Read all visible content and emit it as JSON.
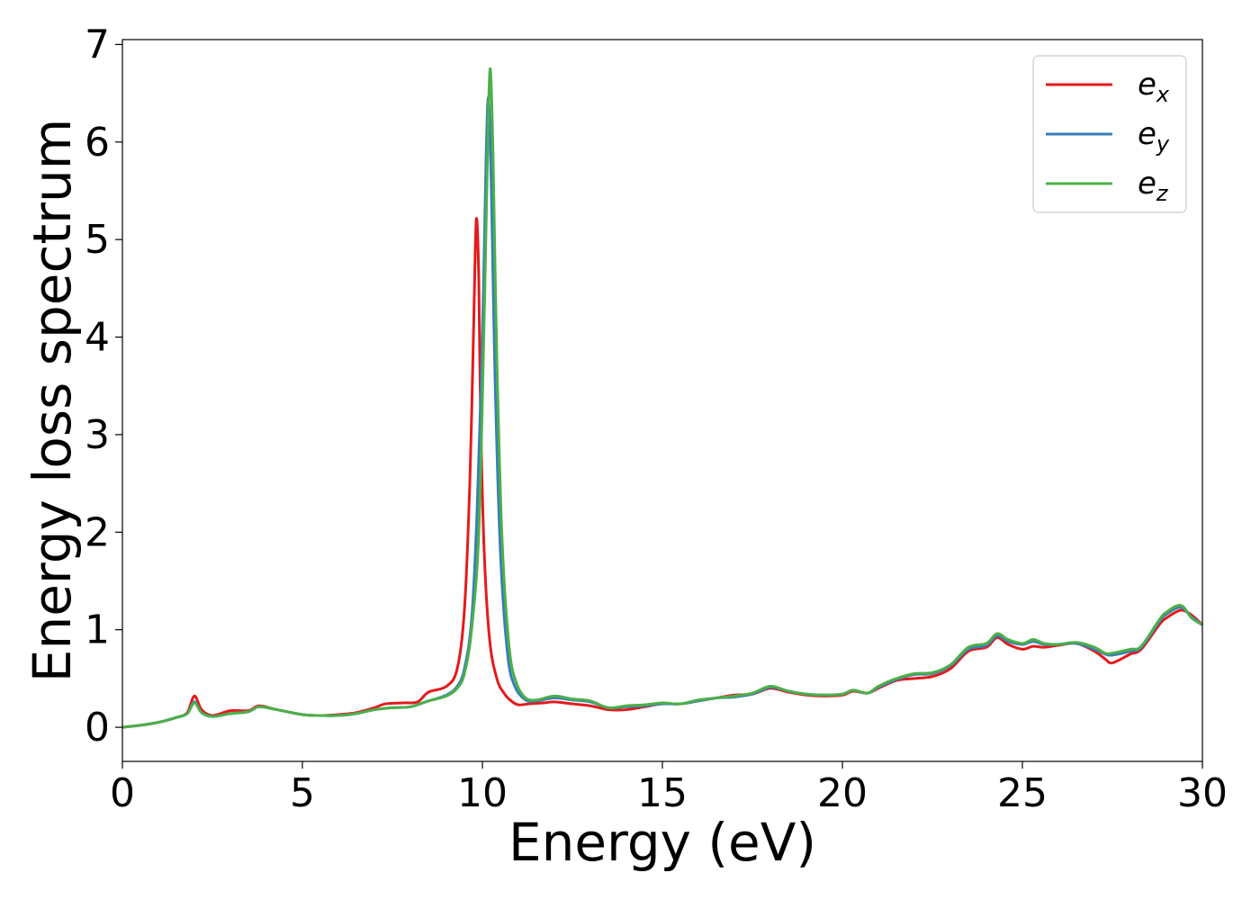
{
  "chart_data": {
    "type": "line",
    "xlabel": "Energy (eV)",
    "ylabel": "Energy loss spectrum",
    "xlim": [
      0,
      30
    ],
    "ylim": [
      -0.35,
      7.05
    ],
    "xticks": [
      0,
      5,
      10,
      15,
      20,
      25,
      30
    ],
    "yticks": [
      0,
      1,
      2,
      3,
      4,
      5,
      6,
      7
    ],
    "grid": false,
    "legend_position": "top-right",
    "series": [
      {
        "name": "e",
        "subscript": "x",
        "color": "#e41a1c",
        "points": [
          [
            0,
            0.0
          ],
          [
            0.5,
            0.02
          ],
          [
            1.0,
            0.05
          ],
          [
            1.5,
            0.1
          ],
          [
            1.8,
            0.15
          ],
          [
            2.0,
            0.32
          ],
          [
            2.2,
            0.18
          ],
          [
            2.5,
            0.12
          ],
          [
            3.0,
            0.17
          ],
          [
            3.5,
            0.17
          ],
          [
            3.8,
            0.22
          ],
          [
            4.3,
            0.18
          ],
          [
            5.0,
            0.13
          ],
          [
            5.5,
            0.12
          ],
          [
            6.0,
            0.13
          ],
          [
            6.5,
            0.15
          ],
          [
            7.0,
            0.2
          ],
          [
            7.3,
            0.24
          ],
          [
            7.8,
            0.25
          ],
          [
            8.2,
            0.26
          ],
          [
            8.5,
            0.36
          ],
          [
            9.0,
            0.42
          ],
          [
            9.3,
            0.6
          ],
          [
            9.5,
            1.2
          ],
          [
            9.65,
            2.5
          ],
          [
            9.75,
            4.0
          ],
          [
            9.83,
            5.2
          ],
          [
            9.9,
            4.6
          ],
          [
            9.95,
            3.2
          ],
          [
            10.05,
            1.8
          ],
          [
            10.2,
            0.9
          ],
          [
            10.4,
            0.5
          ],
          [
            10.6,
            0.35
          ],
          [
            10.8,
            0.27
          ],
          [
            11.0,
            0.23
          ],
          [
            11.3,
            0.24
          ],
          [
            11.7,
            0.25
          ],
          [
            12.0,
            0.26
          ],
          [
            12.5,
            0.24
          ],
          [
            13.0,
            0.22
          ],
          [
            13.5,
            0.18
          ],
          [
            14.0,
            0.18
          ],
          [
            14.5,
            0.21
          ],
          [
            15.0,
            0.24
          ],
          [
            15.5,
            0.24
          ],
          [
            16.0,
            0.27
          ],
          [
            16.5,
            0.3
          ],
          [
            17.0,
            0.33
          ],
          [
            17.5,
            0.34
          ],
          [
            18.0,
            0.4
          ],
          [
            18.5,
            0.36
          ],
          [
            19.0,
            0.33
          ],
          [
            19.5,
            0.32
          ],
          [
            20.0,
            0.33
          ],
          [
            20.3,
            0.37
          ],
          [
            20.7,
            0.35
          ],
          [
            21.0,
            0.4
          ],
          [
            21.5,
            0.48
          ],
          [
            22.0,
            0.5
          ],
          [
            22.5,
            0.52
          ],
          [
            23.0,
            0.6
          ],
          [
            23.5,
            0.78
          ],
          [
            24.0,
            0.82
          ],
          [
            24.3,
            0.92
          ],
          [
            24.6,
            0.85
          ],
          [
            25.0,
            0.8
          ],
          [
            25.3,
            0.83
          ],
          [
            25.6,
            0.82
          ],
          [
            26.0,
            0.84
          ],
          [
            26.5,
            0.86
          ],
          [
            27.0,
            0.78
          ],
          [
            27.3,
            0.7
          ],
          [
            27.5,
            0.66
          ],
          [
            28.0,
            0.75
          ],
          [
            28.3,
            0.8
          ],
          [
            28.8,
            1.05
          ],
          [
            29.0,
            1.12
          ],
          [
            29.4,
            1.2
          ],
          [
            29.7,
            1.15
          ],
          [
            30.0,
            1.05
          ]
        ]
      },
      {
        "name": "e",
        "subscript": "y",
        "color": "#377eb8",
        "points": [
          [
            0,
            0.0
          ],
          [
            0.5,
            0.02
          ],
          [
            1.0,
            0.05
          ],
          [
            1.5,
            0.1
          ],
          [
            1.8,
            0.14
          ],
          [
            2.0,
            0.26
          ],
          [
            2.2,
            0.15
          ],
          [
            2.5,
            0.11
          ],
          [
            3.0,
            0.14
          ],
          [
            3.5,
            0.16
          ],
          [
            3.8,
            0.21
          ],
          [
            4.3,
            0.18
          ],
          [
            5.0,
            0.13
          ],
          [
            5.5,
            0.12
          ],
          [
            6.0,
            0.12
          ],
          [
            6.5,
            0.14
          ],
          [
            7.0,
            0.18
          ],
          [
            7.5,
            0.2
          ],
          [
            8.0,
            0.21
          ],
          [
            8.5,
            0.27
          ],
          [
            9.0,
            0.33
          ],
          [
            9.3,
            0.42
          ],
          [
            9.5,
            0.6
          ],
          [
            9.7,
            1.1
          ],
          [
            9.85,
            2.2
          ],
          [
            10.0,
            4.0
          ],
          [
            10.1,
            5.8
          ],
          [
            10.17,
            6.45
          ],
          [
            10.25,
            5.5
          ],
          [
            10.35,
            3.6
          ],
          [
            10.5,
            1.8
          ],
          [
            10.7,
            0.75
          ],
          [
            10.9,
            0.42
          ],
          [
            11.2,
            0.28
          ],
          [
            11.5,
            0.27
          ],
          [
            12.0,
            0.3
          ],
          [
            12.5,
            0.28
          ],
          [
            13.0,
            0.26
          ],
          [
            13.5,
            0.2
          ],
          [
            14.0,
            0.21
          ],
          [
            14.5,
            0.22
          ],
          [
            15.0,
            0.24
          ],
          [
            15.5,
            0.24
          ],
          [
            16.0,
            0.27
          ],
          [
            16.5,
            0.3
          ],
          [
            17.0,
            0.31
          ],
          [
            17.5,
            0.34
          ],
          [
            18.0,
            0.41
          ],
          [
            18.5,
            0.37
          ],
          [
            19.0,
            0.34
          ],
          [
            19.5,
            0.33
          ],
          [
            20.0,
            0.34
          ],
          [
            20.3,
            0.38
          ],
          [
            20.7,
            0.35
          ],
          [
            21.0,
            0.41
          ],
          [
            21.5,
            0.49
          ],
          [
            22.0,
            0.54
          ],
          [
            22.5,
            0.55
          ],
          [
            23.0,
            0.63
          ],
          [
            23.5,
            0.8
          ],
          [
            24.0,
            0.84
          ],
          [
            24.3,
            0.94
          ],
          [
            24.6,
            0.88
          ],
          [
            25.0,
            0.85
          ],
          [
            25.3,
            0.88
          ],
          [
            25.6,
            0.85
          ],
          [
            26.0,
            0.85
          ],
          [
            26.5,
            0.86
          ],
          [
            27.0,
            0.8
          ],
          [
            27.3,
            0.75
          ],
          [
            27.5,
            0.74
          ],
          [
            28.0,
            0.78
          ],
          [
            28.3,
            0.82
          ],
          [
            28.8,
            1.08
          ],
          [
            29.0,
            1.16
          ],
          [
            29.4,
            1.23
          ],
          [
            29.7,
            1.13
          ],
          [
            30.0,
            1.05
          ]
        ]
      },
      {
        "name": "e",
        "subscript": "z",
        "color": "#4daf4a",
        "points": [
          [
            0,
            0.0
          ],
          [
            0.5,
            0.02
          ],
          [
            1.0,
            0.05
          ],
          [
            1.5,
            0.1
          ],
          [
            1.8,
            0.14
          ],
          [
            2.0,
            0.25
          ],
          [
            2.2,
            0.15
          ],
          [
            2.5,
            0.11
          ],
          [
            3.0,
            0.14
          ],
          [
            3.5,
            0.16
          ],
          [
            3.8,
            0.21
          ],
          [
            4.3,
            0.18
          ],
          [
            5.0,
            0.13
          ],
          [
            5.5,
            0.12
          ],
          [
            6.0,
            0.12
          ],
          [
            6.5,
            0.14
          ],
          [
            7.0,
            0.18
          ],
          [
            7.5,
            0.2
          ],
          [
            8.0,
            0.21
          ],
          [
            8.5,
            0.27
          ],
          [
            9.0,
            0.32
          ],
          [
            9.3,
            0.4
          ],
          [
            9.5,
            0.55
          ],
          [
            9.7,
            1.0
          ],
          [
            9.9,
            2.0
          ],
          [
            10.05,
            4.2
          ],
          [
            10.15,
            6.0
          ],
          [
            10.22,
            6.75
          ],
          [
            10.3,
            5.8
          ],
          [
            10.4,
            3.8
          ],
          [
            10.55,
            1.9
          ],
          [
            10.75,
            0.8
          ],
          [
            10.95,
            0.45
          ],
          [
            11.2,
            0.3
          ],
          [
            11.5,
            0.28
          ],
          [
            12.0,
            0.32
          ],
          [
            12.5,
            0.29
          ],
          [
            13.0,
            0.27
          ],
          [
            13.5,
            0.2
          ],
          [
            14.0,
            0.22
          ],
          [
            14.5,
            0.23
          ],
          [
            15.0,
            0.25
          ],
          [
            15.5,
            0.24
          ],
          [
            16.0,
            0.28
          ],
          [
            16.5,
            0.3
          ],
          [
            17.0,
            0.32
          ],
          [
            17.5,
            0.35
          ],
          [
            18.0,
            0.42
          ],
          [
            18.5,
            0.37
          ],
          [
            19.0,
            0.34
          ],
          [
            19.5,
            0.33
          ],
          [
            20.0,
            0.34
          ],
          [
            20.3,
            0.38
          ],
          [
            20.7,
            0.35
          ],
          [
            21.0,
            0.42
          ],
          [
            21.5,
            0.5
          ],
          [
            22.0,
            0.55
          ],
          [
            22.5,
            0.56
          ],
          [
            23.0,
            0.64
          ],
          [
            23.5,
            0.82
          ],
          [
            24.0,
            0.86
          ],
          [
            24.3,
            0.96
          ],
          [
            24.6,
            0.9
          ],
          [
            25.0,
            0.86
          ],
          [
            25.3,
            0.9
          ],
          [
            25.6,
            0.86
          ],
          [
            26.0,
            0.85
          ],
          [
            26.5,
            0.87
          ],
          [
            27.0,
            0.82
          ],
          [
            27.3,
            0.76
          ],
          [
            27.5,
            0.76
          ],
          [
            28.0,
            0.8
          ],
          [
            28.3,
            0.83
          ],
          [
            28.8,
            1.1
          ],
          [
            29.0,
            1.18
          ],
          [
            29.4,
            1.25
          ],
          [
            29.7,
            1.12
          ],
          [
            30.0,
            1.05
          ]
        ]
      }
    ]
  }
}
